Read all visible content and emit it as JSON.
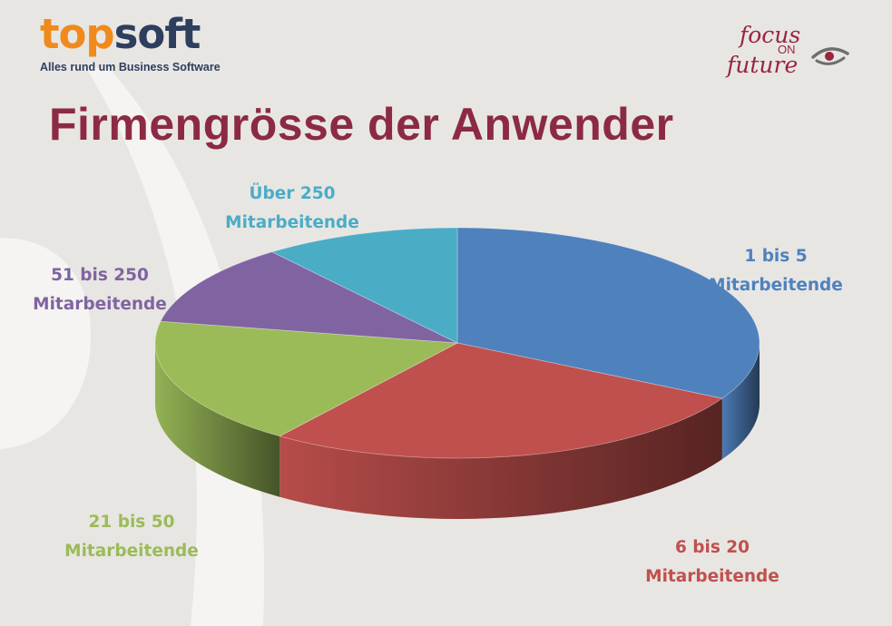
{
  "branding": {
    "logo_left_part1": "top",
    "logo_left_part2": "soft",
    "logo_left_tagline": "Alles rund um Business Software",
    "logo_right_line1": "focus",
    "logo_right_line2": "ON",
    "logo_right_line3": "future",
    "eye_icon": "eye-icon"
  },
  "colors": {
    "title": "#8c2a44",
    "brand_orange": "#f08a1c",
    "brand_navy": "#2d3e5e",
    "accent_red": "#9a2540"
  },
  "chart_data": {
    "type": "pie",
    "title": "Firmengrösse der Anwender",
    "slices": [
      {
        "line1": "1 bis 5",
        "line2": "Mitarbeitende",
        "value": 33,
        "color": "#4f81bd"
      },
      {
        "line1": "6 bis 20",
        "line2": "Mitarbeitende",
        "value": 27,
        "color": "#c0504d"
      },
      {
        "line1": "21 bis 50",
        "line2": "Mitarbeitende",
        "value": 18,
        "color": "#9bbb59"
      },
      {
        "line1": "51 bis 250",
        "line2": "Mitarbeitende",
        "value": 11.5,
        "color": "#8064a2"
      },
      {
        "line1": "Über 250",
        "line2": "Mitarbeitende",
        "value": 10.5,
        "color": "#4bacc6"
      }
    ],
    "style": "3d",
    "start": "12-o-clock",
    "direction": "clockwise",
    "legend": "none"
  }
}
